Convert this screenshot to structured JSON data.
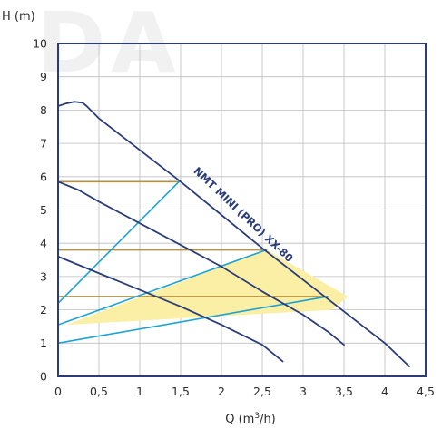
{
  "chart_data": {
    "type": "line",
    "watermark": "DA",
    "xlabel_base": "Q (m",
    "xlabel_sup": "3",
    "xlabel_tail": "/h)",
    "ylabel": "H (m)",
    "xlim": [
      0,
      4.5
    ],
    "ylim": [
      0,
      10
    ],
    "x_ticks": [
      "0",
      "0,5",
      "1",
      "1,5",
      "2",
      "2,5",
      "3",
      "3,5",
      "4",
      "4,5"
    ],
    "y_ticks": [
      "0",
      "1",
      "2",
      "3",
      "4",
      "5",
      "6",
      "7",
      "8",
      "9",
      "10"
    ],
    "grid": true,
    "curve_label": "NMT MINI (PRO) XX-80",
    "series": [
      {
        "kind": "pump-curve",
        "x": [
          0,
          0.1,
          0.2,
          0.3,
          0.35,
          0.5,
          1.0,
          1.5,
          2.0,
          2.5,
          3.0,
          3.5,
          4.0,
          4.3
        ],
        "y": [
          8.12,
          8.2,
          8.25,
          8.22,
          8.12,
          7.75,
          6.8,
          5.85,
          4.85,
          3.85,
          2.9,
          1.95,
          1.0,
          0.3
        ]
      },
      {
        "kind": "pump-curve",
        "x": [
          0,
          0.25,
          0.5,
          1.0,
          1.5,
          2.0,
          2.5,
          3.0,
          3.3,
          3.5
        ],
        "y": [
          5.85,
          5.6,
          5.25,
          4.6,
          3.95,
          3.3,
          2.55,
          1.85,
          1.35,
          0.95
        ]
      },
      {
        "kind": "pump-curve",
        "x": [
          0,
          0.5,
          1.0,
          1.5,
          2.0,
          2.5,
          2.75
        ],
        "y": [
          3.6,
          3.1,
          2.6,
          2.1,
          1.55,
          0.95,
          0.45
        ]
      },
      {
        "kind": "system-curve",
        "x": [
          0,
          1.48
        ],
        "y": [
          2.2,
          5.85
        ]
      },
      {
        "kind": "system-curve",
        "x": [
          0,
          2.55
        ],
        "y": [
          1.55,
          3.8
        ]
      },
      {
        "kind": "system-curve",
        "x": [
          0,
          3.3
        ],
        "y": [
          1.0,
          2.4
        ]
      },
      {
        "kind": "setpoint",
        "x": [
          0,
          1.48
        ],
        "y": [
          5.85,
          5.85
        ]
      },
      {
        "kind": "setpoint",
        "x": [
          0,
          2.55
        ],
        "y": [
          3.8,
          3.8
        ]
      },
      {
        "kind": "setpoint",
        "x": [
          0,
          3.3
        ],
        "y": [
          2.4,
          2.4
        ]
      }
    ],
    "area": {
      "x": [
        0.1,
        2.55,
        3.55,
        3.35,
        0.1
      ],
      "y": [
        1.55,
        3.8,
        2.4,
        2.0,
        1.55
      ]
    },
    "colors": {
      "pump": "#2a3d78",
      "system": "#1ba3d4",
      "setpoint": "#b8913b",
      "area": "#fbeea5",
      "grid": "#bdbdbd",
      "frame": "#2a3d78"
    }
  }
}
